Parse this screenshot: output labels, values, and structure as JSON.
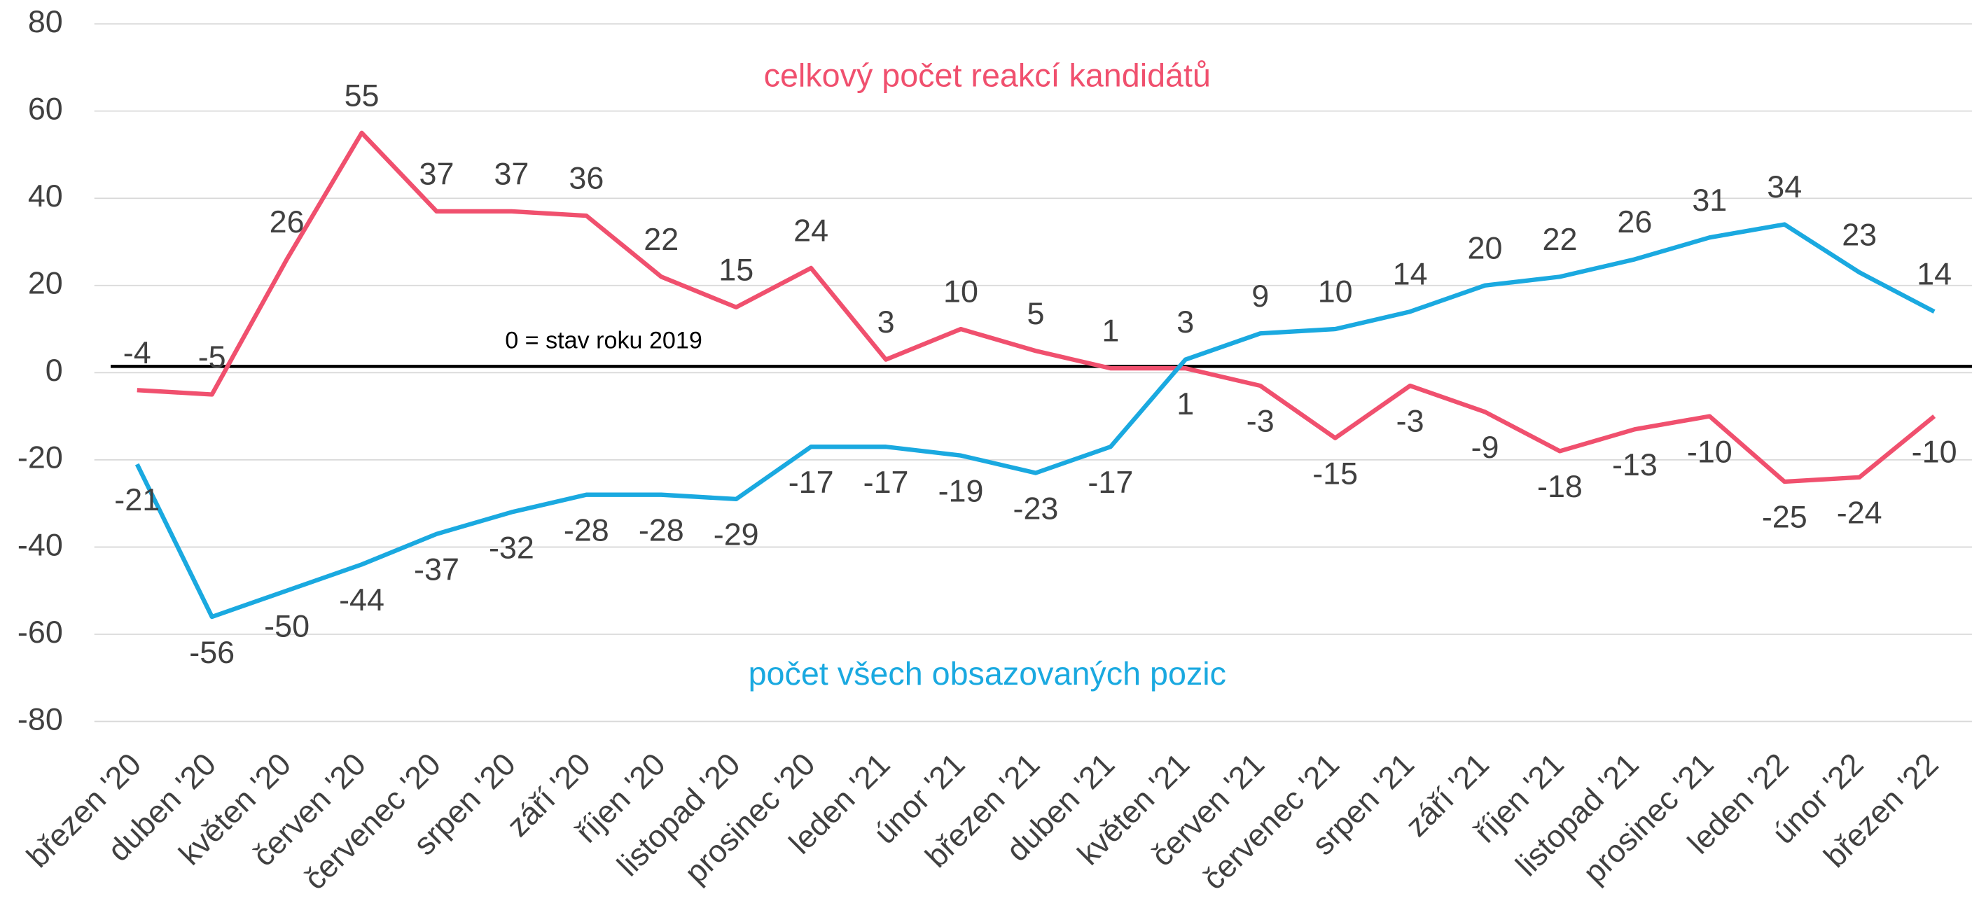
{
  "chart_data": {
    "type": "line",
    "categories": [
      "březen '20",
      "duben '20",
      "květen '20",
      "červen '20",
      "červenec '20",
      "srpen '20",
      "září '20",
      "říjen '20",
      "listopad '20",
      "prosinec '20",
      "leden '21",
      "únor '21",
      "březen '21",
      "duben '21",
      "květen '21",
      "červen '21",
      "červenec '21",
      "srpen '21",
      "září '21",
      "říjen '21",
      "listopad '21",
      "prosinec '21",
      "leden '22",
      "únor '22",
      "březen '22"
    ],
    "series": [
      {
        "name": "celkový počet reakcí kandidátů",
        "color": "#f0506e",
        "values": [
          -4,
          -5,
          26,
          55,
          37,
          37,
          36,
          22,
          15,
          24,
          3,
          10,
          5,
          1,
          1,
          -3,
          -15,
          -3,
          -9,
          -18,
          -13,
          -10,
          -25,
          -24,
          -10
        ]
      },
      {
        "name": "počet všech obsazovaných pozic",
        "color": "#1aa9e0",
        "values": [
          -21,
          -56,
          -50,
          -44,
          -37,
          -32,
          -28,
          -28,
          -29,
          -17,
          -17,
          -19,
          -23,
          -17,
          3,
          9,
          10,
          14,
          20,
          22,
          26,
          31,
          34,
          23,
          14
        ]
      }
    ],
    "annotation": "0 = stav roku 2019",
    "ylim": [
      -80,
      80
    ],
    "yticks": [
      -80,
      -60,
      -40,
      -20,
      0,
      20,
      40,
      60,
      80
    ],
    "grid": true
  }
}
